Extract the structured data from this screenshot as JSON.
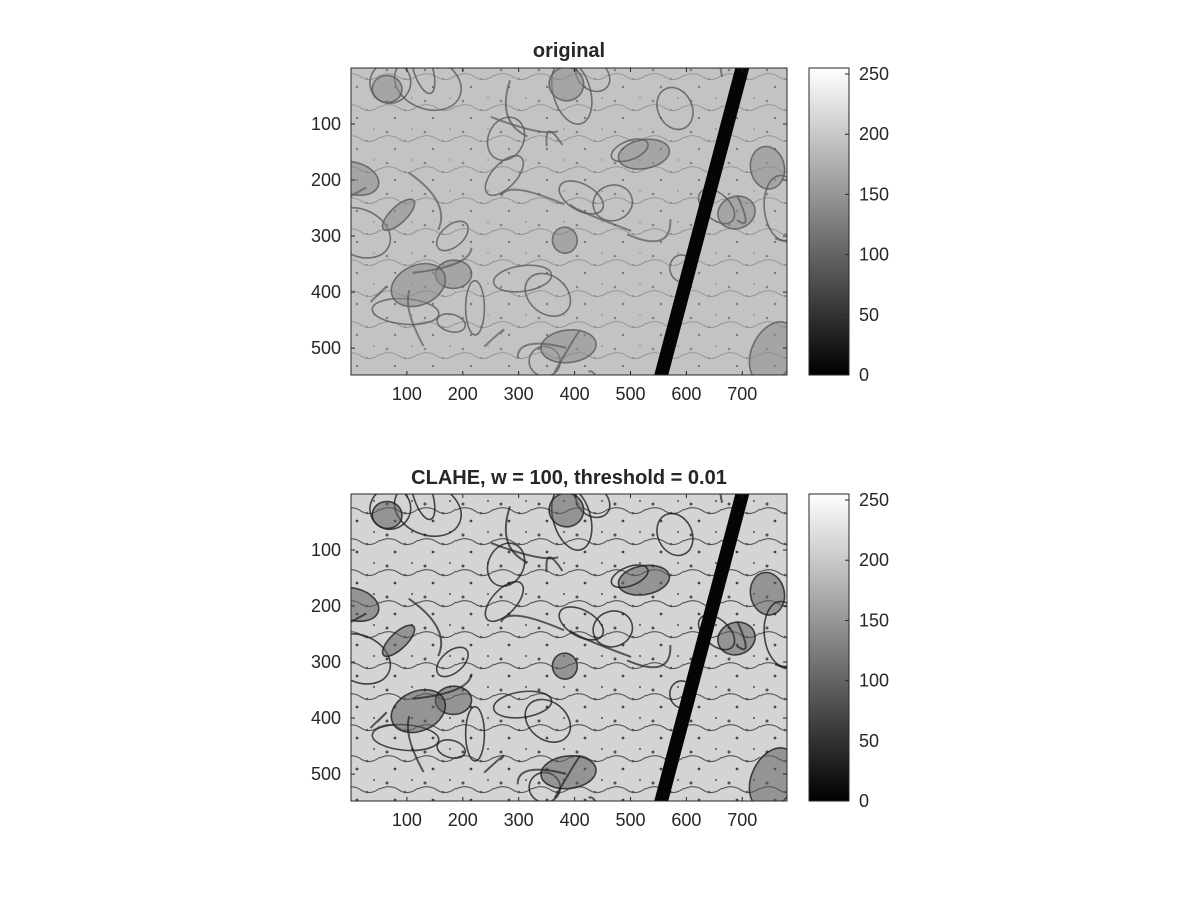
{
  "chart_data": [
    {
      "type": "heatmap",
      "title": "original",
      "colormap": "gray",
      "image_size": {
        "width": 780,
        "height": 548
      },
      "xlim": [
        0,
        780
      ],
      "ylim": [
        0,
        548
      ],
      "y_reversed": true,
      "x_ticks": [
        100,
        200,
        300,
        400,
        500,
        600,
        700
      ],
      "y_ticks": [
        100,
        200,
        300,
        400,
        500
      ],
      "colorbar": {
        "range": [
          0,
          255
        ],
        "ticks": [
          0,
          50,
          100,
          150,
          200,
          250
        ]
      },
      "dark_band": {
        "start_x": 700,
        "end_x": 555,
        "width": 14
      },
      "background_gray": "#bdbdbd"
    },
    {
      "type": "heatmap",
      "title": "CLAHE, w = 100, threshold = 0.01",
      "colormap": "gray",
      "image_size": {
        "width": 780,
        "height": 548
      },
      "xlim": [
        0,
        780
      ],
      "ylim": [
        0,
        548
      ],
      "y_reversed": true,
      "x_ticks": [
        100,
        200,
        300,
        400,
        500,
        600,
        700
      ],
      "y_ticks": [
        100,
        200,
        300,
        400,
        500
      ],
      "colorbar": {
        "range": [
          0,
          255
        ],
        "ticks": [
          0,
          50,
          100,
          150,
          200,
          250
        ]
      },
      "dark_band": {
        "start_x": 700,
        "end_x": 555,
        "width": 14
      },
      "background_gray": "#c8c8c8"
    }
  ]
}
